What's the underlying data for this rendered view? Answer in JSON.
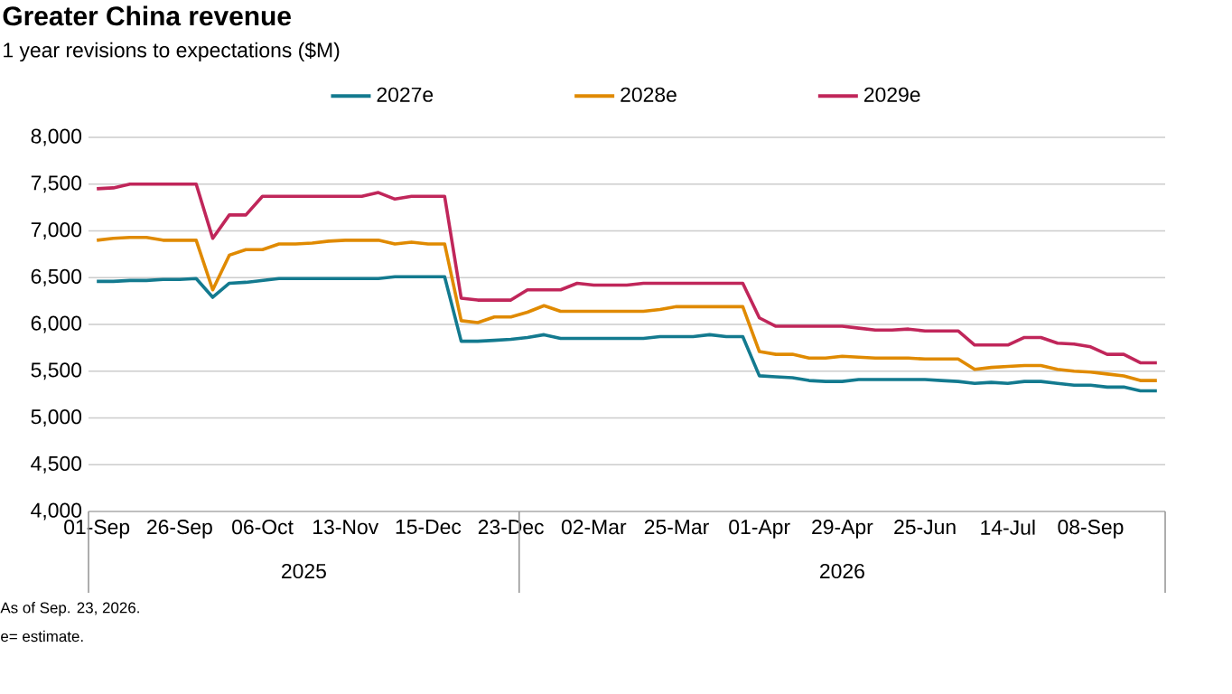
{
  "chart_data": {
    "type": "line",
    "title": "Greater China revenue",
    "subtitle": "1 year revisions to expectations ($M)",
    "categories": [
      "01-Sep",
      null,
      null,
      null,
      null,
      "26-Sep",
      null,
      null,
      null,
      null,
      "06-Oct",
      null,
      null,
      null,
      null,
      "13-Nov",
      null,
      null,
      null,
      null,
      "15-Dec",
      null,
      null,
      null,
      null,
      "23-Dec",
      null,
      null,
      null,
      null,
      "02-Mar",
      null,
      null,
      null,
      null,
      "25-Mar",
      null,
      null,
      null,
      null,
      "01-Apr",
      null,
      null,
      null,
      null,
      "29-Apr",
      null,
      null,
      null,
      null,
      "25-Jun",
      null,
      null,
      null,
      null,
      "14-Jul",
      null,
      null,
      null,
      null,
      "08-Sep",
      null,
      null,
      null,
      null
    ],
    "series": [
      {
        "name": "2027e",
        "color": "#137a8f",
        "values": [
          6460,
          6460,
          6470,
          6470,
          6480,
          6480,
          6490,
          6290,
          6440,
          6450,
          6470,
          6490,
          6490,
          6490,
          6490,
          6490,
          6490,
          6490,
          6510,
          6510,
          6510,
          6510,
          5820,
          5820,
          5830,
          5840,
          5860,
          5890,
          5850,
          5850,
          5850,
          5850,
          5850,
          5850,
          5870,
          5870,
          5870,
          5890,
          5870,
          5870,
          5450,
          5440,
          5430,
          5400,
          5390,
          5390,
          5410,
          5410,
          5410,
          5410,
          5410,
          5400,
          5390,
          5370,
          5380,
          5370,
          5390,
          5390,
          5370,
          5350,
          5350,
          5330,
          5330,
          5290,
          5290
        ]
      },
      {
        "name": "2028e",
        "color": "#e08a00",
        "values": [
          6900,
          6920,
          6930,
          6930,
          6900,
          6900,
          6900,
          6370,
          6740,
          6800,
          6800,
          6860,
          6860,
          6870,
          6890,
          6900,
          6900,
          6900,
          6860,
          6880,
          6860,
          6860,
          6040,
          6020,
          6080,
          6080,
          6130,
          6200,
          6140,
          6140,
          6140,
          6140,
          6140,
          6140,
          6160,
          6190,
          6190,
          6190,
          6190,
          6190,
          5710,
          5680,
          5680,
          5640,
          5640,
          5660,
          5650,
          5640,
          5640,
          5640,
          5630,
          5630,
          5630,
          5520,
          5540,
          5550,
          5560,
          5560,
          5520,
          5500,
          5490,
          5470,
          5450,
          5400,
          5400
        ]
      },
      {
        "name": "2029e",
        "color": "#c0265a",
        "values": [
          7450,
          7460,
          7500,
          7500,
          7500,
          7500,
          7500,
          6920,
          7170,
          7170,
          7370,
          7370,
          7370,
          7370,
          7370,
          7370,
          7370,
          7410,
          7340,
          7370,
          7370,
          7370,
          6280,
          6260,
          6260,
          6260,
          6370,
          6370,
          6370,
          6440,
          6420,
          6420,
          6420,
          6440,
          6440,
          6440,
          6440,
          6440,
          6440,
          6440,
          6070,
          5980,
          5980,
          5980,
          5980,
          5980,
          5960,
          5940,
          5940,
          5950,
          5930,
          5930,
          5930,
          5780,
          5780,
          5780,
          5860,
          5860,
          5800,
          5790,
          5760,
          5680,
          5680,
          5590,
          5590
        ]
      }
    ],
    "ylim": [
      4000,
      8000
    ],
    "yticks": [
      {
        "value": 4000,
        "label": "4,000"
      },
      {
        "value": 4500,
        "label": "4,500"
      },
      {
        "value": 5000,
        "label": "5,000"
      },
      {
        "value": 5500,
        "label": "5,500"
      },
      {
        "value": 6000,
        "label": "6,000"
      },
      {
        "value": 6500,
        "label": "6,500"
      },
      {
        "value": 7000,
        "label": "7,000"
      },
      {
        "value": 7500,
        "label": "7,500"
      },
      {
        "value": 8000,
        "label": "8,000"
      }
    ],
    "grid": "y",
    "legend": "top",
    "marker": "none",
    "line_style": "solid",
    "annotations": [
      "2025",
      "2026",
      "As of Sep. 23, 2026.",
      "e= estimate."
    ]
  }
}
